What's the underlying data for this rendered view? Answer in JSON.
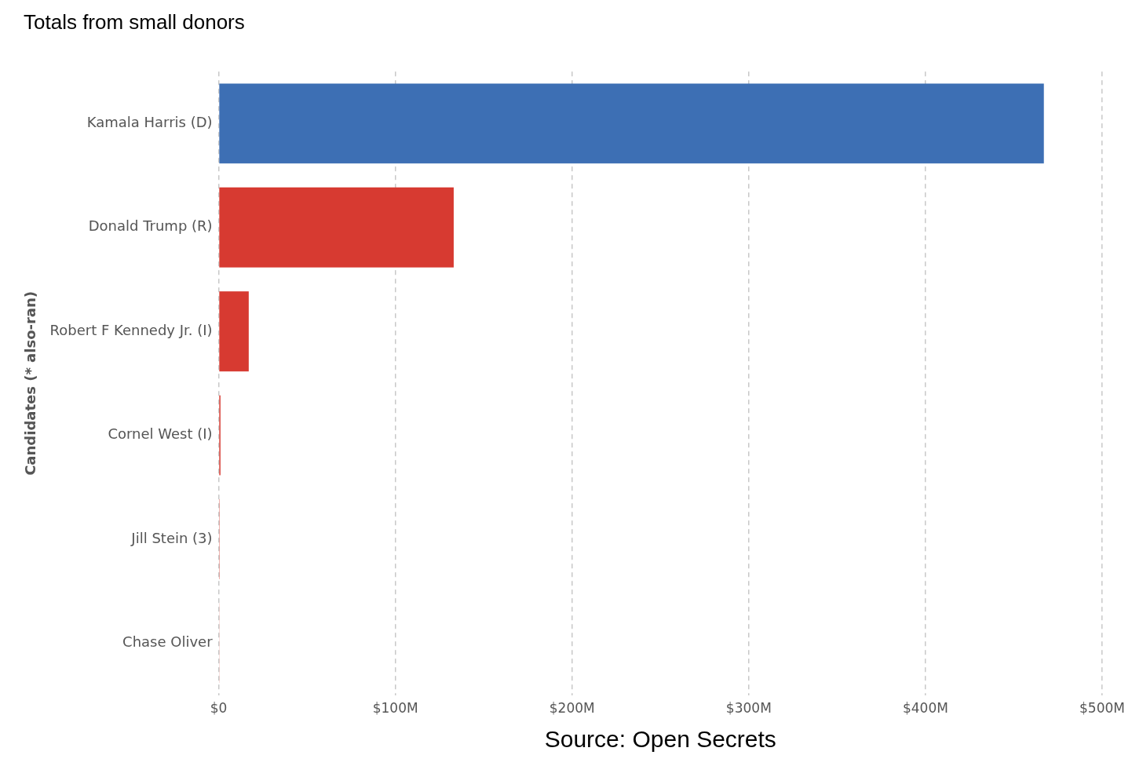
{
  "chart_data": {
    "type": "bar",
    "orientation": "horizontal",
    "title": "Totals from small donors",
    "y_label": "Candidates (* also-ran)",
    "x_label": "Source: Open Secrets",
    "categories": [
      "Kamala Harris (D)",
      "Donald Trump (R)",
      "Robert F Kennedy Jr. (I)",
      "Cornel West (I)",
      "Jill Stein (3)",
      "Chase Oliver"
    ],
    "values": [
      467000000,
      133000000,
      17000000,
      1000000,
      500000,
      200000
    ],
    "colors": [
      "#3d6fb4",
      "#d73a31",
      "#d73a31",
      "#d73a31",
      "#d73a31",
      "#e8a09a"
    ],
    "xlim": [
      0,
      500000000
    ],
    "xticks": [
      {
        "value": 0,
        "label": "$0"
      },
      {
        "value": 100000000,
        "label": "$100M"
      },
      {
        "value": 200000000,
        "label": "$200M"
      },
      {
        "value": 300000000,
        "label": "$300M"
      },
      {
        "value": 400000000,
        "label": "$400M"
      },
      {
        "value": 500000000,
        "label": "$500M"
      }
    ],
    "grid": true
  }
}
